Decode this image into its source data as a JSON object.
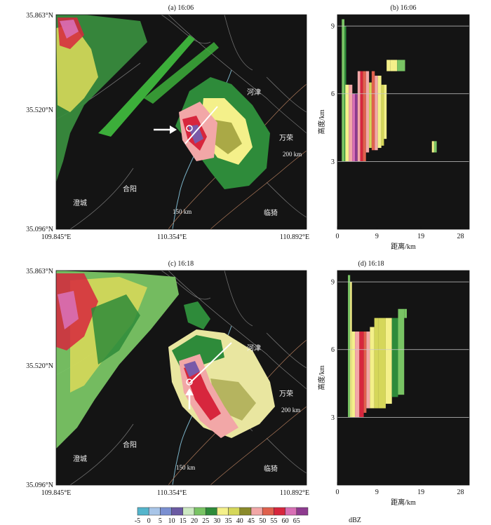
{
  "chart_data": [
    {
      "type": "heatmap",
      "title": "(a) 16:06",
      "lat_ticks": [
        "35.863°N",
        "35.520°N",
        "35.096°N"
      ],
      "lon_ticks": [
        "109.845°E",
        "110.354°E",
        "110.892°E"
      ],
      "xlim": [
        109.845,
        110.892
      ],
      "ylim": [
        35.096,
        35.863
      ],
      "place_names": [
        "河津",
        "万荣",
        "合阳",
        "澄城",
        "临猗"
      ],
      "range_labels": [
        "150 km",
        "200 km"
      ],
      "annotations": [
        "cross-section line",
        "arrow marker"
      ]
    },
    {
      "type": "heatmap",
      "title": "(b) 16:06",
      "xlabel": "距离/km",
      "ylabel": "高度/km",
      "x_ticks": [
        "0",
        "9",
        "19",
        "28"
      ],
      "y_ticks": [
        "3",
        "6",
        "9"
      ],
      "xlim": [
        0,
        30
      ],
      "ylim": [
        0,
        9.5
      ]
    },
    {
      "type": "heatmap",
      "title": "(c) 16:18",
      "lat_ticks": [
        "35.863°N",
        "35.520°N",
        "35.096°N"
      ],
      "lon_ticks": [
        "109.845°E",
        "110.354°E",
        "110.892°E"
      ],
      "xlim": [
        109.845,
        110.892
      ],
      "ylim": [
        35.096,
        35.863
      ],
      "place_names": [
        "河津",
        "万荣",
        "合阳",
        "澄城",
        "临猗"
      ],
      "range_labels": [
        "150 km",
        "200 km"
      ],
      "annotations": [
        "cross-section line",
        "arrow marker"
      ]
    },
    {
      "type": "heatmap",
      "title": "(d) 16:18",
      "xlabel": "距离/km",
      "ylabel": "高度/km",
      "x_ticks": [
        "0",
        "9",
        "19",
        "28"
      ],
      "y_ticks": [
        "3",
        "6",
        "9"
      ],
      "xlim": [
        0,
        30
      ],
      "ylim": [
        0,
        9.5
      ]
    }
  ],
  "colorbar": {
    "unit": "dBZ",
    "ticks": [
      "-5",
      "0",
      "5",
      "10",
      "15",
      "20",
      "25",
      "30",
      "35",
      "40",
      "45",
      "50",
      "55",
      "60",
      "65"
    ],
    "colors": [
      "#54b5cc",
      "#a8c5e8",
      "#7a8fd1",
      "#6b5aa3",
      "#cde9c2",
      "#79c464",
      "#2e8b3a",
      "#f4f08a",
      "#d5d75a",
      "#8a8a2a",
      "#f2a7a7",
      "#e0614d",
      "#d7263d",
      "#d86fb5",
      "#8e3b8f"
    ]
  }
}
